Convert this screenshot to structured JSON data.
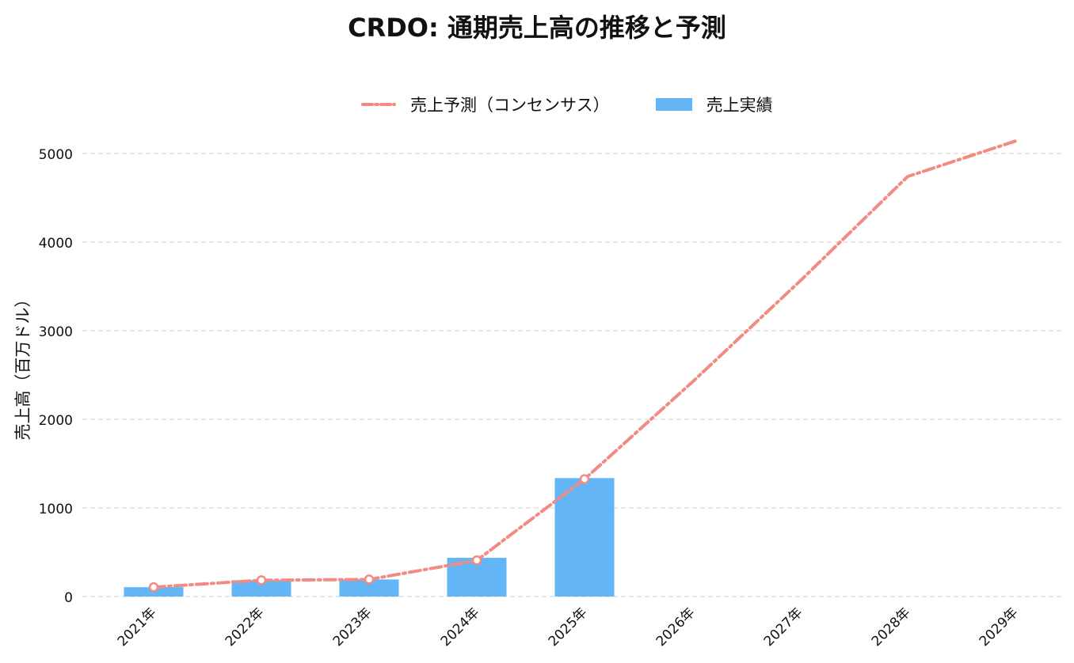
{
  "chart_data": {
    "type": "bar",
    "title": "CRDO: 通期売上高の推移と予測",
    "xlabel": "",
    "ylabel": "売上高（百万ドル）",
    "categories": [
      "2021年",
      "2022年",
      "2023年",
      "2024年",
      "2025年",
      "2026年",
      "2027年",
      "2028年",
      "2029年"
    ],
    "ylim": [
      0,
      5200
    ],
    "yticks": [
      0,
      1000,
      2000,
      3000,
      4000,
      5000
    ],
    "grid": true,
    "legend_position": "top-center",
    "series": [
      {
        "name": "売上予測（コンセンサス）",
        "type": "line",
        "style": "dash-dot",
        "color": "#f28b82",
        "values": [
          106,
          184,
          193,
          408,
          1325,
          2420,
          3560,
          4740,
          5140
        ],
        "markers": [
          true,
          true,
          true,
          true,
          true,
          false,
          false,
          false,
          false
        ]
      },
      {
        "name": "売上実績",
        "type": "bar",
        "color": "#64b5f6",
        "values": [
          106,
          184,
          193,
          437,
          1337,
          null,
          null,
          null,
          null
        ]
      }
    ]
  }
}
